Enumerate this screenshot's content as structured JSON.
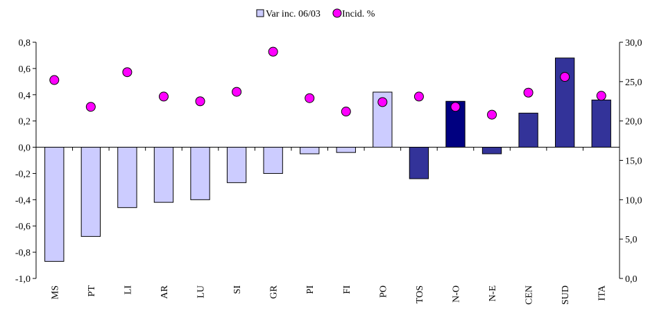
{
  "chart_data": {
    "type": "bar",
    "categories": [
      "MS",
      "PT",
      "LI",
      "AR",
      "LU",
      "SI",
      "GR",
      "PI",
      "FI",
      "PO",
      "TOS",
      "N-O",
      "N-E",
      "CEN",
      "SUD",
      "ITA"
    ],
    "series": [
      {
        "name": "Var inc. 06/03",
        "type": "bar",
        "color": "#ccccff",
        "colors": [
          "#ccccff",
          "#ccccff",
          "#ccccff",
          "#ccccff",
          "#ccccff",
          "#ccccff",
          "#ccccff",
          "#ccccff",
          "#ccccff",
          "#ccccff",
          "#333399",
          "#000080",
          "#333399",
          "#333399",
          "#333399",
          "#333399"
        ],
        "values": [
          -0.87,
          -0.68,
          -0.46,
          -0.42,
          -0.4,
          -0.27,
          -0.2,
          -0.05,
          -0.04,
          0.42,
          -0.24,
          0.35,
          -0.05,
          0.26,
          0.68,
          0.36
        ]
      },
      {
        "name": "Incid. %",
        "type": "scatter",
        "axis": "y2",
        "color": "#ff00ff",
        "values": [
          25.2,
          21.8,
          26.2,
          23.1,
          22.5,
          23.7,
          28.8,
          22.9,
          21.2,
          22.4,
          23.1,
          21.8,
          20.8,
          23.6,
          25.6,
          23.2
        ]
      }
    ],
    "ylim": [
      -1.0,
      0.8
    ],
    "yticks": [
      {
        "value": -1.0,
        "label": "-1,0"
      },
      {
        "value": -0.8,
        "label": "-0,8"
      },
      {
        "value": -0.6,
        "label": "-0,6"
      },
      {
        "value": -0.4,
        "label": "-0,4"
      },
      {
        "value": -0.2,
        "label": "-0,2"
      },
      {
        "value": 0,
        "label": "0,0"
      },
      {
        "value": 0.2,
        "label": "0,2"
      },
      {
        "value": 0.4,
        "label": "0,4"
      },
      {
        "value": 0.6,
        "label": "0,6"
      },
      {
        "value": 0.8,
        "label": "0,8"
      }
    ],
    "y2lim": [
      0,
      30
    ],
    "y2ticks": [
      {
        "value": 0,
        "label": "0,0"
      },
      {
        "value": 5,
        "label": "5,0"
      },
      {
        "value": 10,
        "label": "10,0"
      },
      {
        "value": 15,
        "label": "15,0"
      },
      {
        "value": 20,
        "label": "20,0"
      },
      {
        "value": 25,
        "label": "25,0"
      },
      {
        "value": 30,
        "label": "30,0"
      }
    ],
    "grid": false,
    "legend": "top"
  }
}
